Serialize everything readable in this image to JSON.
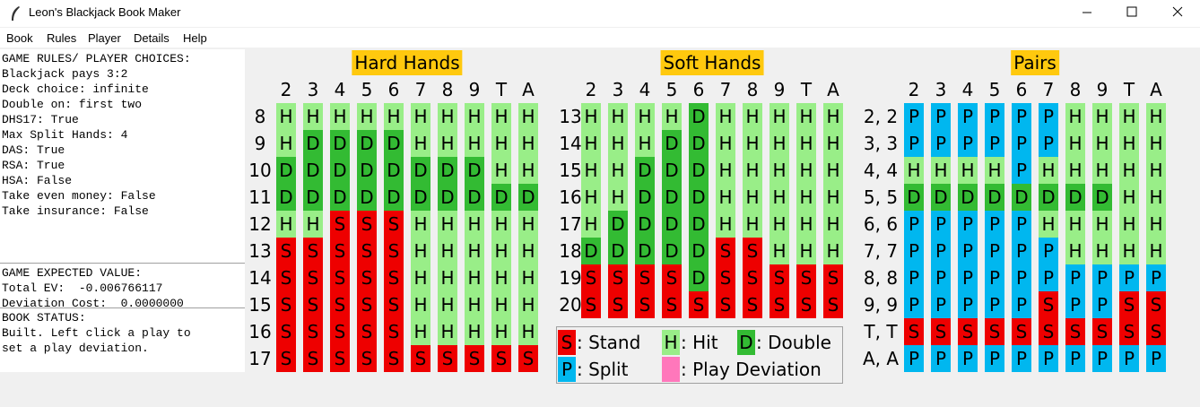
{
  "window": {
    "title": "Leon's Blackjack Book Maker"
  },
  "menu": [
    "Book",
    "Rules",
    "Player",
    "Details",
    "Help"
  ],
  "left_panel": {
    "rules": [
      "GAME RULES/ PLAYER CHOICES:",
      "Blackjack pays 3:2",
      "Deck choice: infinite",
      "Double on: first two",
      "DHS17: True",
      "Max Split Hands: 4",
      "DAS: True",
      "RSA: True",
      "HSA: False",
      "Take even money: False",
      "Take insurance: False"
    ],
    "ev": [
      "GAME EXPECTED VALUE:",
      "Total EV:  -0.006766117",
      "Deviation Cost:  0.0000000"
    ],
    "status": [
      "BOOK STATUS:",
      "Built. Left click a play to",
      "set a play deviation."
    ]
  },
  "tables": [
    {
      "title": "Hard Hands",
      "columns": [
        "2",
        "3",
        "4",
        "5",
        "6",
        "7",
        "8",
        "9",
        "T",
        "A"
      ],
      "rows": [
        {
          "label": "8",
          "cells": [
            "H",
            "H",
            "H",
            "H",
            "H",
            "H",
            "H",
            "H",
            "H",
            "H"
          ]
        },
        {
          "label": "9",
          "cells": [
            "H",
            "D",
            "D",
            "D",
            "D",
            "H",
            "H",
            "H",
            "H",
            "H"
          ]
        },
        {
          "label": "10",
          "cells": [
            "D",
            "D",
            "D",
            "D",
            "D",
            "D",
            "D",
            "D",
            "H",
            "H"
          ]
        },
        {
          "label": "11",
          "cells": [
            "D",
            "D",
            "D",
            "D",
            "D",
            "D",
            "D",
            "D",
            "D",
            "D"
          ]
        },
        {
          "label": "12",
          "cells": [
            "H",
            "H",
            "S",
            "S",
            "S",
            "H",
            "H",
            "H",
            "H",
            "H"
          ]
        },
        {
          "label": "13",
          "cells": [
            "S",
            "S",
            "S",
            "S",
            "S",
            "H",
            "H",
            "H",
            "H",
            "H"
          ]
        },
        {
          "label": "14",
          "cells": [
            "S",
            "S",
            "S",
            "S",
            "S",
            "H",
            "H",
            "H",
            "H",
            "H"
          ]
        },
        {
          "label": "15",
          "cells": [
            "S",
            "S",
            "S",
            "S",
            "S",
            "H",
            "H",
            "H",
            "H",
            "H"
          ]
        },
        {
          "label": "16",
          "cells": [
            "S",
            "S",
            "S",
            "S",
            "S",
            "H",
            "H",
            "H",
            "H",
            "H"
          ]
        },
        {
          "label": "17",
          "cells": [
            "S",
            "S",
            "S",
            "S",
            "S",
            "S",
            "S",
            "S",
            "S",
            "S"
          ]
        }
      ]
    },
    {
      "title": "Soft Hands",
      "columns": [
        "2",
        "3",
        "4",
        "5",
        "6",
        "7",
        "8",
        "9",
        "T",
        "A"
      ],
      "rows": [
        {
          "label": "13",
          "cells": [
            "H",
            "H",
            "H",
            "H",
            "D",
            "H",
            "H",
            "H",
            "H",
            "H"
          ]
        },
        {
          "label": "14",
          "cells": [
            "H",
            "H",
            "H",
            "D",
            "D",
            "H",
            "H",
            "H",
            "H",
            "H"
          ]
        },
        {
          "label": "15",
          "cells": [
            "H",
            "H",
            "D",
            "D",
            "D",
            "H",
            "H",
            "H",
            "H",
            "H"
          ]
        },
        {
          "label": "16",
          "cells": [
            "H",
            "H",
            "D",
            "D",
            "D",
            "H",
            "H",
            "H",
            "H",
            "H"
          ]
        },
        {
          "label": "17",
          "cells": [
            "H",
            "D",
            "D",
            "D",
            "D",
            "H",
            "H",
            "H",
            "H",
            "H"
          ]
        },
        {
          "label": "18",
          "cells": [
            "D",
            "D",
            "D",
            "D",
            "D",
            "S",
            "S",
            "H",
            "H",
            "H"
          ]
        },
        {
          "label": "19",
          "cells": [
            "S",
            "S",
            "S",
            "S",
            "D",
            "S",
            "S",
            "S",
            "S",
            "S"
          ]
        },
        {
          "label": "20",
          "cells": [
            "S",
            "S",
            "S",
            "S",
            "S",
            "S",
            "S",
            "S",
            "S",
            "S"
          ]
        }
      ]
    },
    {
      "title": "Pairs",
      "columns": [
        "2",
        "3",
        "4",
        "5",
        "6",
        "7",
        "8",
        "9",
        "T",
        "A"
      ],
      "rows": [
        {
          "label": "2, 2",
          "cells": [
            "P",
            "P",
            "P",
            "P",
            "P",
            "P",
            "H",
            "H",
            "H",
            "H"
          ]
        },
        {
          "label": "3, 3",
          "cells": [
            "P",
            "P",
            "P",
            "P",
            "P",
            "P",
            "H",
            "H",
            "H",
            "H"
          ]
        },
        {
          "label": "4, 4",
          "cells": [
            "H",
            "H",
            "H",
            "H",
            "P",
            "H",
            "H",
            "H",
            "H",
            "H"
          ]
        },
        {
          "label": "5, 5",
          "cells": [
            "D",
            "D",
            "D",
            "D",
            "D",
            "D",
            "D",
            "D",
            "H",
            "H"
          ]
        },
        {
          "label": "6, 6",
          "cells": [
            "P",
            "P",
            "P",
            "P",
            "P",
            "H",
            "H",
            "H",
            "H",
            "H"
          ]
        },
        {
          "label": "7, 7",
          "cells": [
            "P",
            "P",
            "P",
            "P",
            "P",
            "P",
            "H",
            "H",
            "H",
            "H"
          ]
        },
        {
          "label": "8, 8",
          "cells": [
            "P",
            "P",
            "P",
            "P",
            "P",
            "P",
            "P",
            "P",
            "P",
            "P"
          ]
        },
        {
          "label": "9, 9",
          "cells": [
            "P",
            "P",
            "P",
            "P",
            "P",
            "S",
            "P",
            "P",
            "S",
            "S"
          ]
        },
        {
          "label": "T, T",
          "cells": [
            "S",
            "S",
            "S",
            "S",
            "S",
            "S",
            "S",
            "S",
            "S",
            "S"
          ]
        },
        {
          "label": "A, A",
          "cells": [
            "P",
            "P",
            "P",
            "P",
            "P",
            "P",
            "P",
            "P",
            "P",
            "P"
          ]
        }
      ]
    }
  ],
  "legend": [
    {
      "key": "S",
      "label": ": Stand"
    },
    {
      "key": "H",
      "label": ": Hit"
    },
    {
      "key": "D",
      "label": ": Double"
    },
    {
      "key": "P",
      "label": ": Split"
    },
    {
      "label": ": Play Deviation"
    }
  ]
}
